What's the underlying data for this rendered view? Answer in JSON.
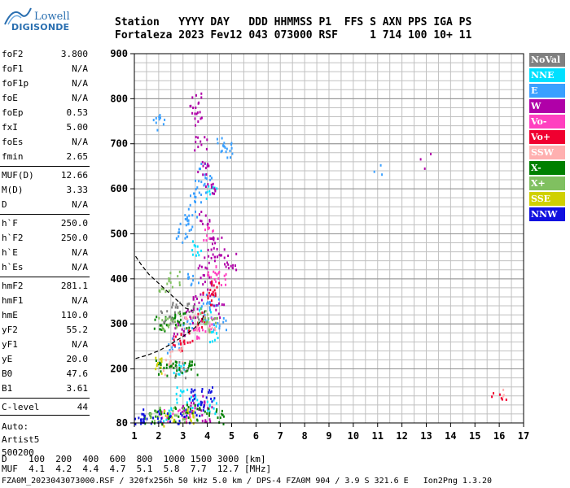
{
  "logo": {
    "line1": "Lowell",
    "line2": "DIGISONDE"
  },
  "header": {
    "row1": "Station   YYYY DAY   DDD HHMMSS P1  FFS S AXN PPS IGA PS",
    "row2": "Fortaleza 2023 Fev12 043 073000 RSF     1 714 100 10+ 11"
  },
  "params": [
    {
      "label": "foF2",
      "value": "3.800"
    },
    {
      "label": "foF1",
      "value": "N/A"
    },
    {
      "label": "foF1p",
      "value": "N/A"
    },
    {
      "label": "foE",
      "value": "N/A"
    },
    {
      "label": "foEp",
      "value": "0.53"
    },
    {
      "label": "fxI",
      "value": "5.00"
    },
    {
      "label": "foEs",
      "value": "N/A"
    },
    {
      "label": "fmin",
      "value": "2.65"
    },
    {
      "label": "MUF(D)",
      "value": "12.66"
    },
    {
      "label": "M(D)",
      "value": "3.33"
    },
    {
      "label": "D",
      "value": "N/A"
    },
    {
      "label": "h`F",
      "value": "250.0"
    },
    {
      "label": "h`F2",
      "value": "250.0"
    },
    {
      "label": "h`E",
      "value": "N/A"
    },
    {
      "label": "h`Es",
      "value": "N/A"
    },
    {
      "label": "hmF2",
      "value": "281.1"
    },
    {
      "label": "hmF1",
      "value": "N/A"
    },
    {
      "label": "hmE",
      "value": "110.0"
    },
    {
      "label": "yF2",
      "value": "55.2"
    },
    {
      "label": "yF1",
      "value": "N/A"
    },
    {
      "label": "yE",
      "value": "20.0"
    },
    {
      "label": "B0",
      "value": "47.6"
    },
    {
      "label": "B1",
      "value": "3.61"
    },
    {
      "label": "C-level",
      "value": "44"
    }
  ],
  "autoscale": {
    "line1": "Auto:",
    "line2": "Artist5",
    "line3": "500200"
  },
  "muf_table": {
    "d_label": "D",
    "d_values": [
      "100",
      "200",
      "400",
      "600",
      "800",
      "1000",
      "1500",
      "3000"
    ],
    "d_unit": "[km]",
    "muf_label": "MUF",
    "muf_values": [
      "4.1",
      "4.2",
      "4.4",
      "4.7",
      "5.1",
      "5.8",
      "7.7",
      "12.7"
    ],
    "muf_unit": "[MHz]"
  },
  "footer": "FZA0M_2023043073000.RSF / 320fx256h 50 kHz 5.0 km / DPS-4 FZA0M 904 / 3.9 S 321.6 E   Ion2Png 1.3.20",
  "legend": [
    {
      "label": "NoVal",
      "color": "#808080"
    },
    {
      "label": "NNE",
      "color": "#00e0ff"
    },
    {
      "label": "E",
      "color": "#3aa0ff"
    },
    {
      "label": "W",
      "color": "#b000a8"
    },
    {
      "label": "Vo-",
      "color": "#ff40c0"
    },
    {
      "label": "Vo+",
      "color": "#f00030"
    },
    {
      "label": "SSW",
      "color": "#ffb0b0"
    },
    {
      "label": "X-",
      "color": "#008000"
    },
    {
      "label": "X+",
      "color": "#80c060"
    },
    {
      "label": "SSE",
      "color": "#d0d000"
    },
    {
      "label": "NNW",
      "color": "#1010e0"
    }
  ],
  "chart_data": {
    "type": "scatter",
    "xlabel": "",
    "ylabel": "",
    "xlim": [
      1,
      17
    ],
    "ylim": [
      80,
      900
    ],
    "x_ticks": [
      1,
      2,
      3,
      4,
      5,
      6,
      7,
      8,
      9,
      10,
      11,
      12,
      13,
      14,
      15,
      16,
      17
    ],
    "y_ticks": [
      80,
      200,
      300,
      400,
      500,
      600,
      700,
      800,
      900
    ],
    "grid": true,
    "series": [
      {
        "name": "NNE",
        "points": [
          [
            2.4,
            100
          ],
          [
            2.9,
            145
          ],
          [
            3.5,
            130
          ],
          [
            4.1,
            120
          ],
          [
            4.3,
            280
          ],
          [
            3.9,
            320
          ],
          [
            4.2,
            590
          ],
          [
            3.6,
            470
          ],
          [
            2.8,
            208
          ]
        ]
      },
      {
        "name": "E",
        "points": [
          [
            3.1,
            520
          ],
          [
            3.3,
            540
          ],
          [
            3.5,
            575
          ],
          [
            3.7,
            610
          ],
          [
            2.9,
            500
          ],
          [
            4.6,
            700
          ],
          [
            2.0,
            750
          ],
          [
            11.1,
            640
          ],
          [
            3.9,
            640
          ],
          [
            4.9,
            688
          ],
          [
            3.4,
            400
          ],
          [
            3.2,
            300
          ],
          [
            4.5,
            300
          ],
          [
            2.6,
            255
          ],
          [
            4.0,
            330
          ],
          [
            4.2,
            350
          ]
        ]
      },
      {
        "name": "W",
        "points": [
          [
            3.8,
            420
          ],
          [
            4.1,
            460
          ],
          [
            4.3,
            480
          ],
          [
            4.6,
            455
          ],
          [
            4.9,
            440
          ],
          [
            4.0,
            380
          ],
          [
            3.6,
            350
          ],
          [
            4.4,
            330
          ],
          [
            3.9,
            540
          ],
          [
            4.1,
            600
          ],
          [
            3.8,
            650
          ],
          [
            3.7,
            700
          ],
          [
            3.6,
            760
          ],
          [
            3.5,
            800
          ],
          [
            12.9,
            662
          ],
          [
            3.3,
            320
          ],
          [
            2.8,
            290
          ],
          [
            3.9,
            100
          ],
          [
            3.2,
            110
          ],
          [
            3.6,
            125
          ]
        ]
      },
      {
        "name": "Vo-",
        "points": [
          [
            4.2,
            420
          ],
          [
            4.5,
            400
          ],
          [
            3.9,
            300
          ],
          [
            3.4,
            280
          ],
          [
            4.0,
            500
          ],
          [
            2.3,
            95
          ],
          [
            3.0,
            95
          ]
        ]
      },
      {
        "name": "Vo+",
        "points": [
          [
            4.0,
            360
          ],
          [
            3.6,
            310
          ],
          [
            3.1,
            270
          ],
          [
            2.8,
            260
          ],
          [
            4.4,
            380
          ],
          [
            15.8,
            138
          ],
          [
            16.2,
            140
          ]
        ]
      },
      {
        "name": "SSW",
        "points": [
          [
            3.3,
            305
          ],
          [
            2.7,
            230
          ],
          [
            2.4,
            205
          ],
          [
            4.1,
            300
          ],
          [
            15.9,
            138
          ]
        ]
      },
      {
        "name": "X-",
        "points": [
          [
            2.1,
            205
          ],
          [
            2.5,
            205
          ],
          [
            2.9,
            205
          ],
          [
            3.3,
            205
          ],
          [
            1.6,
            95
          ],
          [
            2.0,
            97
          ],
          [
            2.6,
            100
          ],
          [
            3.2,
            105
          ],
          [
            3.8,
            98
          ],
          [
            4.4,
            97
          ],
          [
            2.0,
            300
          ],
          [
            2.5,
            310
          ],
          [
            3.0,
            310
          ]
        ]
      },
      {
        "name": "X+",
        "points": [
          [
            2.2,
            300
          ],
          [
            2.6,
            310
          ],
          [
            2.2,
            390
          ],
          [
            2.6,
            400
          ],
          [
            3.8,
            320
          ],
          [
            4.2,
            300
          ],
          [
            1.8,
            100
          ],
          [
            2.8,
            98
          ]
        ]
      },
      {
        "name": "SSE",
        "points": [
          [
            2.0,
            210
          ],
          [
            2.4,
            92
          ],
          [
            3.4,
            98
          ]
        ]
      },
      {
        "name": "NNW",
        "points": [
          [
            1.2,
            95
          ],
          [
            1.5,
            90
          ],
          [
            2.2,
            90
          ],
          [
            3.0,
            95
          ],
          [
            3.5,
            140
          ],
          [
            4.0,
            145
          ],
          [
            3.7,
            110
          ]
        ]
      },
      {
        "name": "NoVal",
        "points": [
          [
            2.3,
            320
          ],
          [
            2.6,
            340
          ],
          [
            2.9,
            200
          ],
          [
            3.4,
            330
          ]
        ]
      }
    ],
    "profile_lower": [
      [
        1.05,
        223
      ],
      [
        1.5,
        230
      ],
      [
        2.0,
        240
      ],
      [
        2.5,
        255
      ],
      [
        3.0,
        272
      ],
      [
        3.5,
        292
      ],
      [
        3.8,
        310
      ],
      [
        3.9,
        330
      ]
    ],
    "profile_upper": [
      [
        1.05,
        450
      ],
      [
        1.3,
        430
      ],
      [
        1.6,
        410
      ],
      [
        2.0,
        390
      ],
      [
        2.4,
        370
      ],
      [
        2.8,
        350
      ],
      [
        3.1,
        335
      ],
      [
        3.4,
        330
      ]
    ]
  }
}
